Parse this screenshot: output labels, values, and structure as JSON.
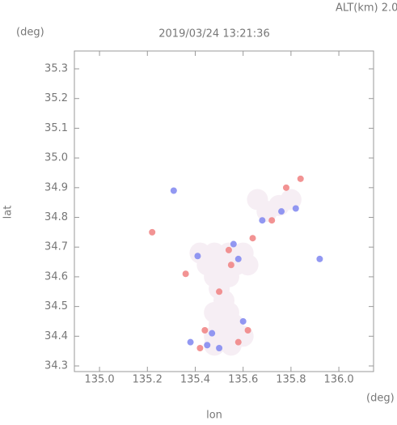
{
  "chart_data": {
    "type": "scatter",
    "title": "2019/03/24 13:21:36",
    "subtitle": "ALT(km) 2.0",
    "x_label": "lon",
    "y_label": "lat",
    "x_unit": "(deg)",
    "y_unit": "(deg)",
    "xlim": [
      134.895,
      136.145
    ],
    "ylim": [
      34.281,
      35.36
    ],
    "xticks": [
      {
        "value": 135,
        "label": "135.0"
      },
      135.2,
      135.4,
      135.6,
      135.8,
      {
        "value": 136,
        "label": "136.0"
      }
    ],
    "yticks": [
      34.3,
      34.4,
      34.5,
      34.6,
      34.7,
      34.8,
      34.9,
      {
        "value": 35,
        "label": "35.0"
      },
      35.1,
      35.2,
      35.3
    ],
    "series": [
      {
        "color": "#f6eef4",
        "x": [
          135.42,
          135.48,
          135.54,
          135.6,
          135.45,
          135.51,
          135.57,
          135.62,
          135.48,
          135.54,
          135.5,
          135.52,
          135.48,
          135.54,
          135.5,
          135.56,
          135.48,
          135.54,
          135.6,
          135.48,
          135.55,
          135.7,
          135.66,
          135.75,
          135.8
        ],
        "values": [
          34.68,
          34.68,
          34.68,
          34.68,
          34.64,
          34.64,
          34.64,
          34.64,
          34.6,
          34.6,
          34.56,
          34.52,
          34.48,
          34.48,
          34.44,
          34.44,
          34.4,
          34.4,
          34.4,
          34.37,
          34.37,
          34.82,
          34.86,
          34.84,
          34.86
        ]
      },
      {
        "color": "#f08080",
        "x": [
          135.42,
          135.58,
          135.64,
          135.54,
          135.72,
          135.84,
          135.78,
          135.36,
          135.44,
          135.22,
          135.5,
          135.55,
          135.62
        ],
        "values": [
          34.36,
          34.38,
          34.73,
          34.69,
          34.79,
          34.93,
          34.9,
          34.61,
          34.42,
          34.75,
          34.55,
          34.64,
          34.42
        ]
      },
      {
        "color": "#7f86f0",
        "x": [
          135.38,
          135.5,
          135.45,
          135.92,
          135.76,
          135.82,
          135.41,
          135.56,
          135.6,
          135.68,
          135.31,
          135.47,
          135.58
        ],
        "values": [
          34.38,
          34.36,
          34.37,
          34.66,
          34.82,
          34.83,
          34.67,
          34.71,
          34.45,
          34.79,
          34.89,
          34.41,
          34.66
        ]
      }
    ]
  }
}
